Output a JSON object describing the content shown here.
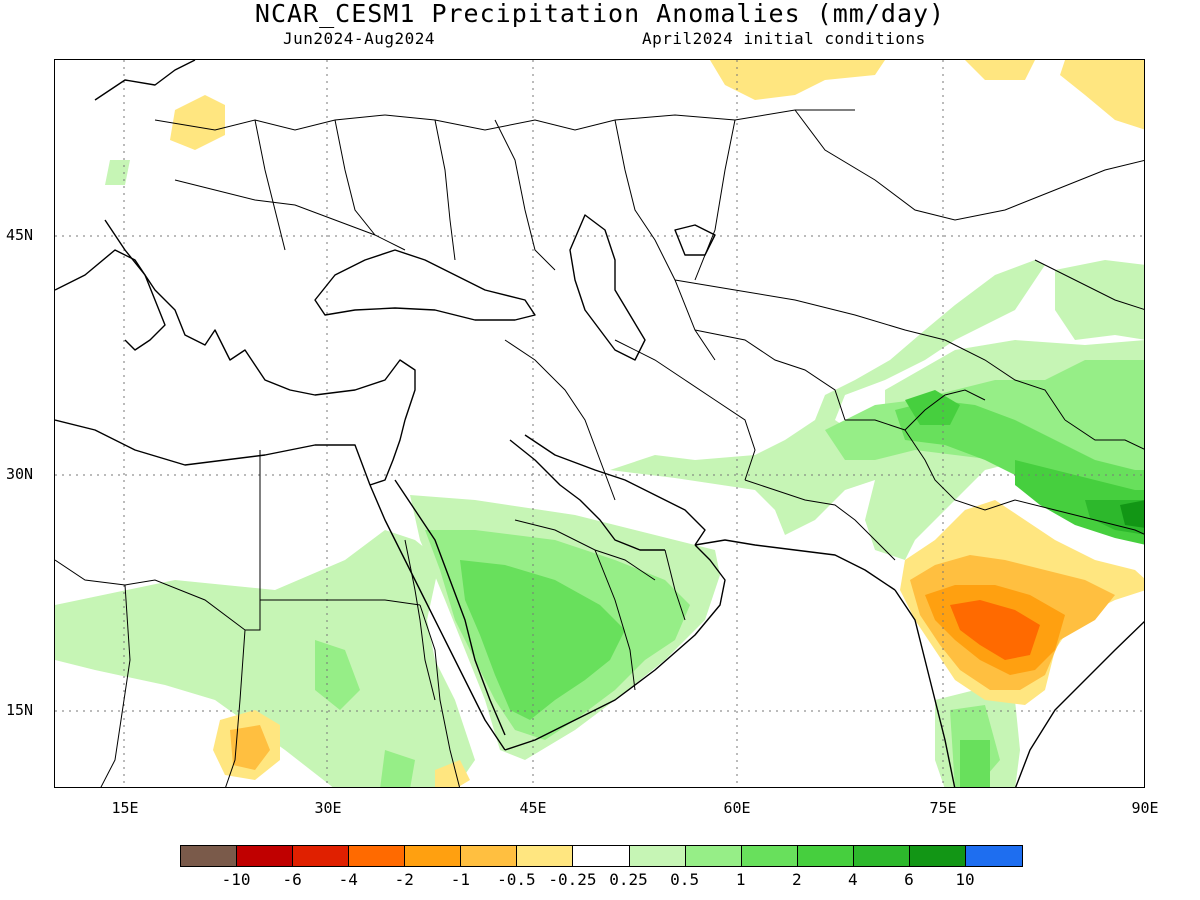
{
  "title": "NCAR_CESM1 Precipitation Anomalies (mm/day)",
  "period": "Jun2024-Aug2024",
  "initial_conditions": "April2024 initial conditions",
  "map": {
    "lon_range": [
      10,
      90
    ],
    "lat_range": [
      10,
      55
    ],
    "lat_ticks": [
      {
        "value": 45,
        "label": "45N"
      },
      {
        "value": 30,
        "label": "30N"
      },
      {
        "value": 15,
        "label": "15N"
      }
    ],
    "lon_ticks": [
      {
        "value": 15,
        "label": "15E"
      },
      {
        "value": 30,
        "label": "30E"
      },
      {
        "value": 45,
        "label": "45E"
      },
      {
        "value": 60,
        "label": "60E"
      },
      {
        "value": 75,
        "label": "75E"
      },
      {
        "value": 90,
        "label": "90E"
      }
    ],
    "gridlines": "dotted",
    "colors": {
      "dry_light": "#ffe680",
      "dry_1": "#ffbf40",
      "dry_2": "#ffa010",
      "dry_3": "#ff6a00",
      "wet_light": "#c6f5b5",
      "wet_1": "#96ee87",
      "wet_2": "#68e05c",
      "wet_3": "#46cf3e",
      "wet_4": "#2db82c",
      "wet_5": "#129615"
    }
  },
  "legend": {
    "colors": [
      "#7a5a4a",
      "#c00000",
      "#e02000",
      "#ff6a00",
      "#ffa010",
      "#ffbf40",
      "#ffe680",
      "#ffffff",
      "#c6f5b5",
      "#96ee87",
      "#68e05c",
      "#46cf3e",
      "#2db82c",
      "#129615",
      "#1e6ef0"
    ],
    "labels": [
      "-10",
      "-6",
      "-4",
      "-2",
      "-1",
      "-0.5",
      "-0.25",
      "0.25",
      "0.5",
      "1",
      "2",
      "4",
      "6",
      "10"
    ]
  }
}
